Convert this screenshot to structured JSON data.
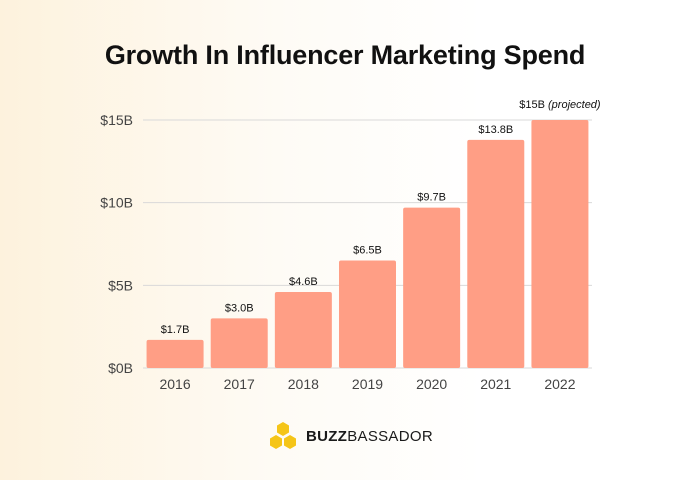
{
  "chart_data": {
    "type": "bar",
    "title": "Growth In Influencer Marketing Spend",
    "categories": [
      "2016",
      "2017",
      "2018",
      "2019",
      "2020",
      "2021",
      "2022"
    ],
    "values": [
      1.7,
      3.0,
      4.6,
      6.5,
      9.7,
      13.8,
      15
    ],
    "data_labels": [
      "$1.7B",
      "$3.0B",
      "$4.6B",
      "$6.5B",
      "$9.7B",
      "$13.8B",
      "$15B"
    ],
    "projected_note": "(projected)",
    "y_ticks": [
      0,
      5,
      10,
      15
    ],
    "y_tick_labels": [
      "$0B",
      "$5B",
      "$10B",
      "$15B"
    ],
    "ylim": [
      0,
      15
    ],
    "xlabel": "",
    "ylabel": "",
    "grid": true,
    "bar_color": "#ff9e85",
    "grid_color": "#d9d9d9"
  },
  "brand": {
    "name_bold": "BUZZ",
    "name_rest": "BASSADOR",
    "logo_color": "#f5c518"
  }
}
